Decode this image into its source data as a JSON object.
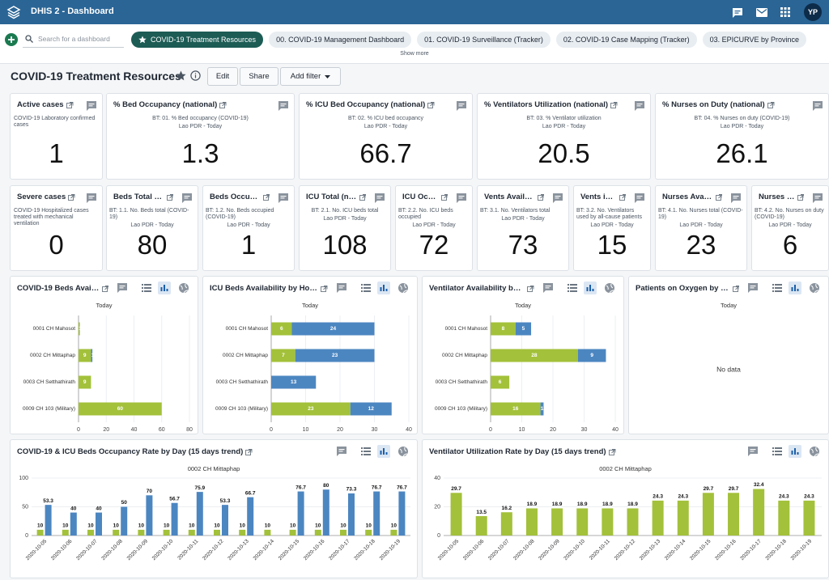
{
  "header": {
    "app_title": "DHIS 2 - Dashboard",
    "avatar": "YP"
  },
  "nav": {
    "search_placeholder": "Search for a dashboard",
    "tabs": [
      "COVID-19 Treatment Resources",
      "00. COVID-19 Management Dashboard",
      "01. COVID-19 Surveillance (Tracker)",
      "02. COVID-19 Case Mapping (Tracker)",
      "03. EPICURVE by Province"
    ],
    "show_more": "Show more"
  },
  "dashboard": {
    "title": "COVID-19 Treatment Resources",
    "buttons": [
      "Edit",
      "Share",
      "Add filter"
    ]
  },
  "kpis": [
    {
      "title": "Active cases",
      "description": "COVID-19 Laboratory confirmed cases",
      "value": 1
    },
    {
      "title": "% Bed Occupancy (national)",
      "description": "BT: 01. % Bed occupancy (COVID-19)",
      "subtitle": "Lao PDR - Today",
      "value": 1.3
    },
    {
      "title": "% ICU Bed Occupancy (national)",
      "description": "BT: 02. % ICU bed occupancy",
      "subtitle": "Lao PDR - Today",
      "value": 66.7
    },
    {
      "title": "% Ventilators Utilization (national)",
      "description": "BT: 03. % Ventilator utilization",
      "subtitle": "Lao PDR - Today",
      "value": 20.5
    },
    {
      "title": "% Nurses on Duty (national)",
      "description": "BT: 04. % Nurses on duty (COVID-19)",
      "subtitle": "Lao PDR - Today",
      "value": 26.1
    },
    {
      "title": "Severe cases",
      "description": "COVID-19 Hospitalized cases treated with mechanical ventilation",
      "value": 0
    },
    {
      "title": "Beds Total (n…",
      "description": "BT: 1.1. No. Beds total (COVID-19)",
      "subtitle": "Lao PDR - Today",
      "value": 80
    },
    {
      "title": "Beds Occupie…",
      "description": "BT: 1.2. No. Beds occupied (COVID-19)",
      "subtitle": "Lao PDR - Today",
      "value": 1
    },
    {
      "title": "ICU Total (nat…",
      "description": "BT: 2.1. No. ICU beds total",
      "subtitle": "Lao PDR - Today",
      "value": 108
    },
    {
      "title": "ICU Occu…",
      "description": "BT: 2.2. No. ICU beds occupied",
      "subtitle": "Lao PDR - Today",
      "value": 72
    },
    {
      "title": "Vents Availab…",
      "description": "BT: 3.1. No. Ventilators total",
      "subtitle": "Lao PDR - Today",
      "value": 73
    },
    {
      "title": "Vents in …",
      "description": "BT: 3.2. No. Ventilators used by all-cause patients",
      "subtitle": "Lao PDR - Today",
      "value": 15
    },
    {
      "title": "Nurses Avail…",
      "description": "BT: 4.1. No. Nurses total (COVID-19)",
      "subtitle": "Lao PDR - Today",
      "value": 23
    },
    {
      "title": "Nurses o…",
      "description": "BT: 4.2. No. Nurses on duty (COVID-19)",
      "subtitle": "Lao PDR - Today",
      "value": 6
    }
  ],
  "chart_data": [
    {
      "type": "bar",
      "orientation": "horizontal",
      "title": "COVID-19 Beds Availa…",
      "subtitle": "Today",
      "categories": [
        "0001 CH Mahosot",
        "0002 CH Mittaphap",
        "0003 CH Setthathirath",
        "0009 CH 103 (Military)"
      ],
      "series": [
        {
          "color": "#a3c13a",
          "values": [
            1,
            9,
            9,
            60
          ]
        },
        {
          "color": "#4c86c1",
          "values": [
            null,
            1,
            null,
            null
          ]
        }
      ],
      "xlim": [
        0,
        80
      ],
      "xticks": [
        0,
        20,
        40,
        60,
        80
      ],
      "grid": true
    },
    {
      "type": "bar",
      "orientation": "horizontal",
      "title": "ICU Beds Availability by Hos…",
      "subtitle": "Today",
      "categories": [
        "0001 CH Mahosot",
        "0002 CH Mittaphap",
        "0003 CH Setthathirath",
        "0009 CH 103 (Military)"
      ],
      "series": [
        {
          "color": "#a3c13a",
          "values": [
            6,
            7,
            0,
            23
          ]
        },
        {
          "color": "#4c86c1",
          "values": [
            24,
            23,
            13,
            12
          ]
        }
      ],
      "xlim": [
        0,
        40
      ],
      "xticks": [
        0,
        10,
        20,
        30,
        40
      ],
      "grid": true
    },
    {
      "type": "bar",
      "orientation": "horizontal",
      "title": "Ventilator Availability by …",
      "subtitle": "Today",
      "categories": [
        "0001 CH Mahosot",
        "0002 CH Mittaphap",
        "0003 CH Setthathirath",
        "0009 CH 103 (Military)"
      ],
      "series": [
        {
          "color": "#a3c13a",
          "values": [
            8,
            28,
            6,
            16
          ]
        },
        {
          "color": "#4c86c1",
          "values": [
            5,
            9,
            null,
            1
          ]
        }
      ],
      "xlim": [
        0,
        40
      ],
      "xticks": [
        0,
        10,
        20,
        30,
        40
      ],
      "grid": true
    },
    {
      "type": "bar",
      "orientation": "horizontal",
      "title": "Patients on Oxygen by Ho…",
      "subtitle": "Today",
      "no_data": "No data"
    },
    {
      "type": "bar",
      "orientation": "vertical",
      "title": "COVID-19 & ICU Beds Occupancy Rate by Day (15 days trend)",
      "subtitle": "0002 CH Mittaphap",
      "x": [
        "2020-10-05",
        "2020-10-06",
        "2020-10-07",
        "2020-10-08",
        "2020-10-09",
        "2020-10-10",
        "2020-10-11",
        "2020-10-12",
        "2020-10-13",
        "2020-10-14",
        "2020-10-15",
        "2020-10-16",
        "2020-10-17",
        "2020-10-18",
        "2020-10-19"
      ],
      "series": [
        {
          "color": "#a3c13a",
          "values": [
            10,
            10,
            10,
            10,
            10,
            10,
            10,
            10,
            10,
            10,
            10,
            10,
            10,
            10,
            10
          ]
        },
        {
          "color": "#4c86c1",
          "values": [
            53.3,
            40,
            40,
            50,
            70,
            56.7,
            75.9,
            53.3,
            66.7,
            null,
            76.7,
            80,
            73.3,
            76.7,
            76.7
          ]
        }
      ],
      "ylim": [
        0,
        100
      ],
      "yticks": [
        0,
        50,
        100
      ],
      "grid": true
    },
    {
      "type": "bar",
      "orientation": "vertical",
      "title": "Ventilator Utilization Rate by Day (15 days trend)",
      "subtitle": "0002 CH Mittaphap",
      "x": [
        "2020-10-05",
        "2020-10-06",
        "2020-10-07",
        "2020-10-08",
        "2020-10-09",
        "2020-10-10",
        "2020-10-11",
        "2020-10-12",
        "2020-10-13",
        "2020-10-14",
        "2020-10-15",
        "2020-10-16",
        "2020-10-17",
        "2020-10-18",
        "2020-10-19"
      ],
      "series": [
        {
          "color": "#a3c13a",
          "values": [
            29.7,
            13.5,
            16.2,
            18.9,
            18.9,
            18.9,
            18.9,
            18.9,
            24.3,
            24.3,
            29.7,
            29.7,
            32.4,
            24.3,
            24.3
          ]
        }
      ],
      "ylim": [
        0,
        40
      ],
      "yticks": [
        0,
        20,
        40
      ],
      "grid": true
    }
  ]
}
